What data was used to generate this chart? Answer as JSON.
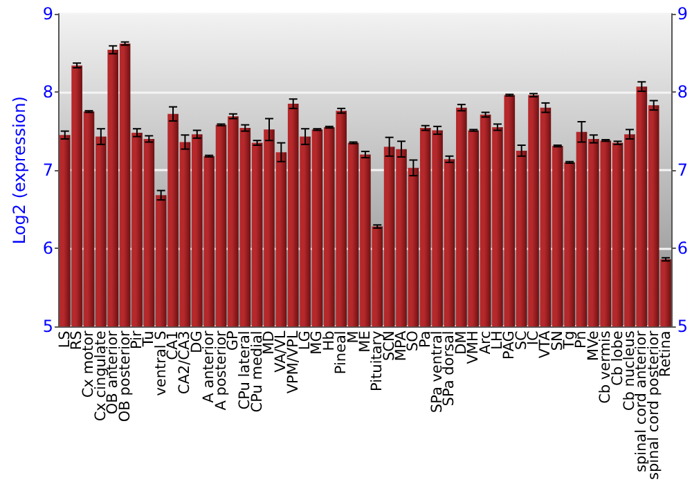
{
  "chart_data": {
    "type": "bar",
    "ylabel": "Log2 (expression)",
    "categories": [
      "LS",
      "RS",
      "Cx motor",
      "Cx cingulate",
      "OB anterior",
      "OB posterior",
      "Pir",
      "Tu",
      "ventral S",
      "CA1",
      "CA2/CA3",
      "DG",
      "A anterior",
      "A posterior",
      "GP",
      "CPu lateral",
      "CPu medial",
      "MD",
      "VA/VL",
      "VPM/VPL",
      "LG",
      "MG",
      "Hb",
      "Pineal",
      "M",
      "ME",
      "Pituitary",
      "SCN",
      "MPA",
      "SO",
      "Pa",
      "SPa ventral",
      "SPa dorsal",
      "DM",
      "VMH",
      "Arc",
      "LH",
      "PAG",
      "SC",
      "IC",
      "VTA",
      "SN",
      "Tg",
      "Pn",
      "MVe",
      "Cb vermis",
      "Cb lobe",
      "Cb nucleus",
      "spinal cord anterior",
      "spinal cord posterior",
      "Retina"
    ],
    "values": [
      7.45,
      8.34,
      7.75,
      7.43,
      8.54,
      8.62,
      7.48,
      7.4,
      6.68,
      7.72,
      7.36,
      7.46,
      7.18,
      7.58,
      7.69,
      7.54,
      7.35,
      7.52,
      7.23,
      7.85,
      7.43,
      7.52,
      7.55,
      7.76,
      7.35,
      7.2,
      6.28,
      7.3,
      7.27,
      7.03,
      7.54,
      7.51,
      7.14,
      7.8,
      7.51,
      7.71,
      7.55,
      7.96,
      7.25,
      7.96,
      7.8,
      7.31,
      7.1,
      7.49,
      7.4,
      7.38,
      7.35,
      7.46,
      8.07,
      7.83,
      5.86
    ],
    "errors": [
      0.05,
      0.03,
      0.01,
      0.1,
      0.05,
      0.02,
      0.05,
      0.04,
      0.06,
      0.09,
      0.09,
      0.05,
      0.01,
      0.01,
      0.03,
      0.04,
      0.03,
      0.14,
      0.12,
      0.06,
      0.1,
      0.01,
      0.01,
      0.03,
      0.01,
      0.04,
      0.02,
      0.12,
      0.1,
      0.1,
      0.03,
      0.05,
      0.04,
      0.04,
      0.01,
      0.03,
      0.04,
      0.01,
      0.07,
      0.02,
      0.06,
      0.01,
      0.01,
      0.13,
      0.05,
      0.01,
      0.02,
      0.06,
      0.06,
      0.06,
      0.02
    ],
    "color": "#b5282b",
    "ylim": [
      5,
      9
    ],
    "yticks": [
      5,
      6,
      7,
      8,
      9
    ],
    "y2lim": [
      5,
      9
    ],
    "y2ticks": [
      5,
      6,
      7,
      8,
      9
    ],
    "grid": "y"
  }
}
